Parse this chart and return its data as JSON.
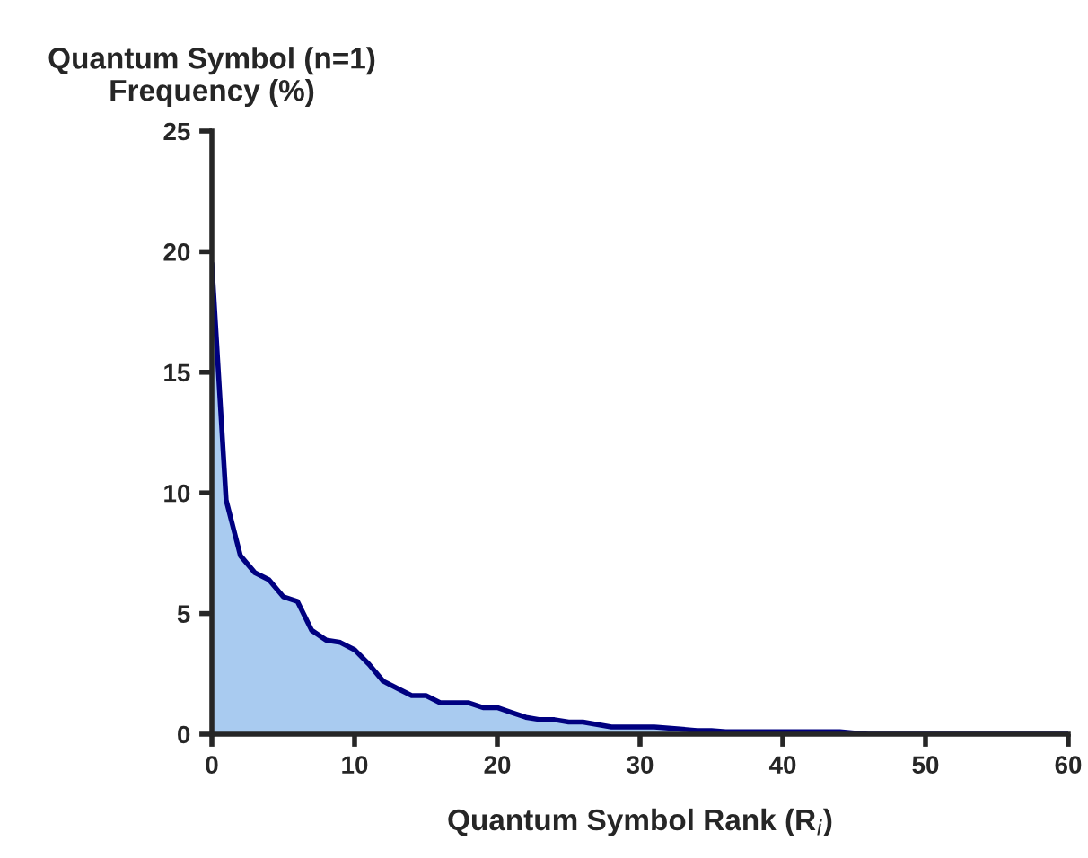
{
  "chart_data": {
    "type": "area",
    "ylabel": "Quantum Symbol (n=1)\nFrequency (%)",
    "xlabel": "Quantum Symbol Rank (R$_{i}$)",
    "x": [
      0,
      1,
      2,
      3,
      4,
      5,
      6,
      7,
      8,
      9,
      10,
      11,
      12,
      13,
      14,
      15,
      16,
      17,
      18,
      19,
      20,
      21,
      22,
      23,
      24,
      25,
      26,
      27,
      28,
      29,
      30,
      31,
      32,
      33,
      34,
      35,
      36,
      37,
      38,
      39,
      40,
      41,
      42,
      43,
      44,
      45,
      46,
      47,
      48,
      49,
      50,
      51,
      52,
      53,
      54,
      55,
      56,
      57,
      58,
      59,
      60
    ],
    "series": [
      {
        "color": "#a9cbf0",
        "values": [
          19.5,
          9.7,
          7.4,
          6.7,
          6.4,
          5.7,
          5.5,
          4.3,
          3.9,
          3.8,
          3.5,
          2.9,
          2.2,
          1.9,
          1.6,
          1.6,
          1.3,
          1.3,
          1.3,
          1.1,
          1.1,
          0.9,
          0.7,
          0.6,
          0.6,
          0.5,
          0.5,
          0.4,
          0.3,
          0.3,
          0.3,
          0.3,
          0.25,
          0.2,
          0.15,
          0.15,
          0.1,
          0.1,
          0.1,
          0.1,
          0.1,
          0.1,
          0.1,
          0.1,
          0.1,
          0.05,
          0,
          0,
          0,
          0,
          0,
          0,
          0,
          0,
          0,
          0,
          0,
          0,
          0,
          0,
          0
        ]
      }
    ],
    "xlim": [
      0,
      60
    ],
    "xticks": [
      0,
      10,
      20,
      30,
      40,
      50,
      60
    ],
    "ylim": [
      0,
      25
    ],
    "yticks": [
      0,
      5,
      10,
      15,
      20,
      25
    ],
    "grid": false,
    "legend": false
  }
}
